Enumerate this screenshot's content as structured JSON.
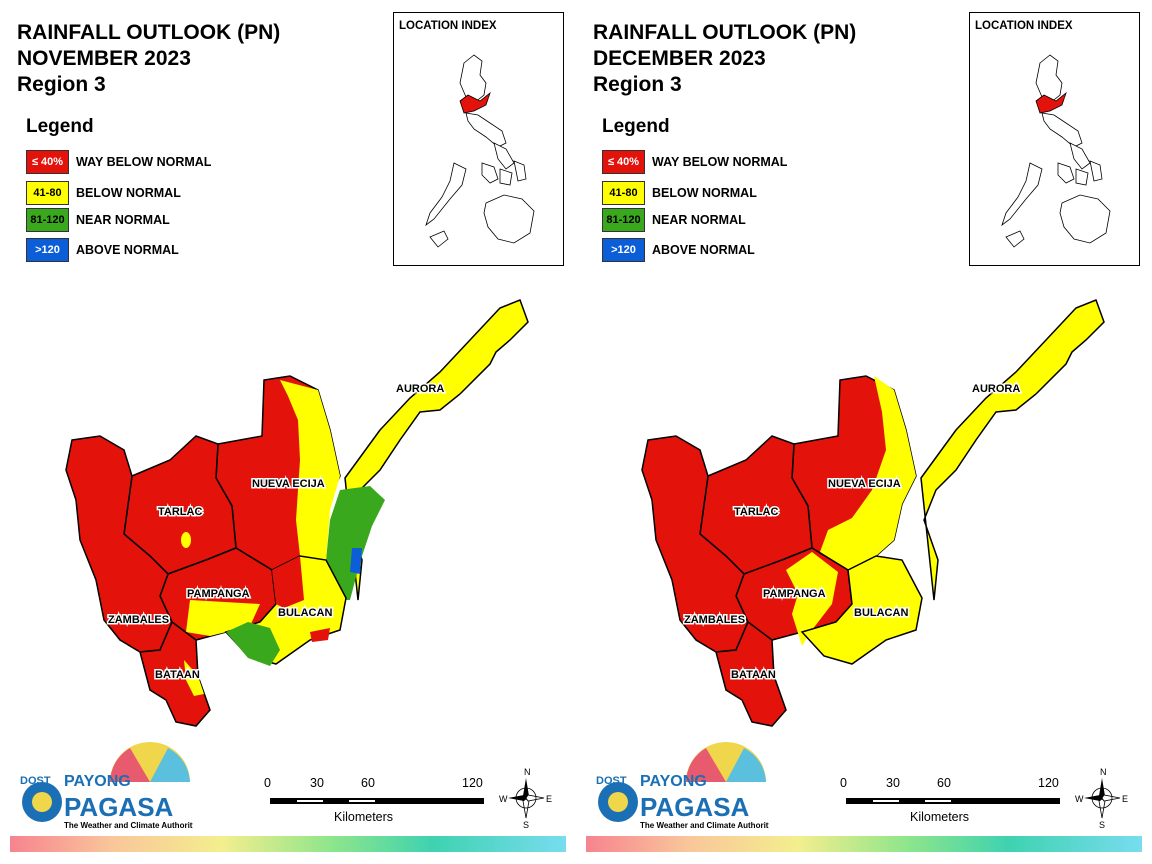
{
  "panels": [
    {
      "title_line1": "RAINFALL OUTLOOK (PN)",
      "title_line2": "NOVEMBER 2023",
      "title_line3": "Region 3",
      "provinces": [
        "AURORA",
        "NUEVA ECIJA",
        "TARLAC",
        "PAMPANGA",
        "BULACAN",
        "ZAMBALES",
        "BATAAN"
      ]
    },
    {
      "title_line1": "RAINFALL OUTLOOK (PN)",
      "title_line2": "DECEMBER 2023",
      "title_line3": "Region 3",
      "provinces": [
        "AURORA",
        "NUEVA ECIJA",
        "TARLAC",
        "PAMPANGA",
        "BULACAN",
        "ZAMBALES",
        "BATAAN"
      ]
    }
  ],
  "legend": {
    "title": "Legend",
    "items": [
      {
        "range": "≤ 40%",
        "label": "WAY BELOW NORMAL",
        "color": "#e3120b"
      },
      {
        "range": "41-80",
        "label": "BELOW NORMAL",
        "color": "#ffff00"
      },
      {
        "range": "81-120",
        "label": "NEAR NORMAL",
        "color": "#3aa81c"
      },
      {
        "range": ">120",
        "label": "ABOVE NORMAL",
        "color": "#0b5ed7"
      }
    ]
  },
  "location_index": {
    "label": "LOCATION INDEX"
  },
  "scale_bar": {
    "ticks": [
      "0",
      "30",
      "60",
      "120"
    ],
    "unit": "Kilometers"
  },
  "compass": {
    "n": "N",
    "s": "S",
    "e": "E",
    "w": "W"
  },
  "logo": {
    "dost": "DOST",
    "payong": "PAYONG",
    "pagasa": "PAGASA",
    "tagline": "The Weather and Climate Authority"
  },
  "colors": {
    "way_below": "#e3120b",
    "below": "#ffff00",
    "near": "#3aa81c",
    "above": "#0b5ed7"
  }
}
